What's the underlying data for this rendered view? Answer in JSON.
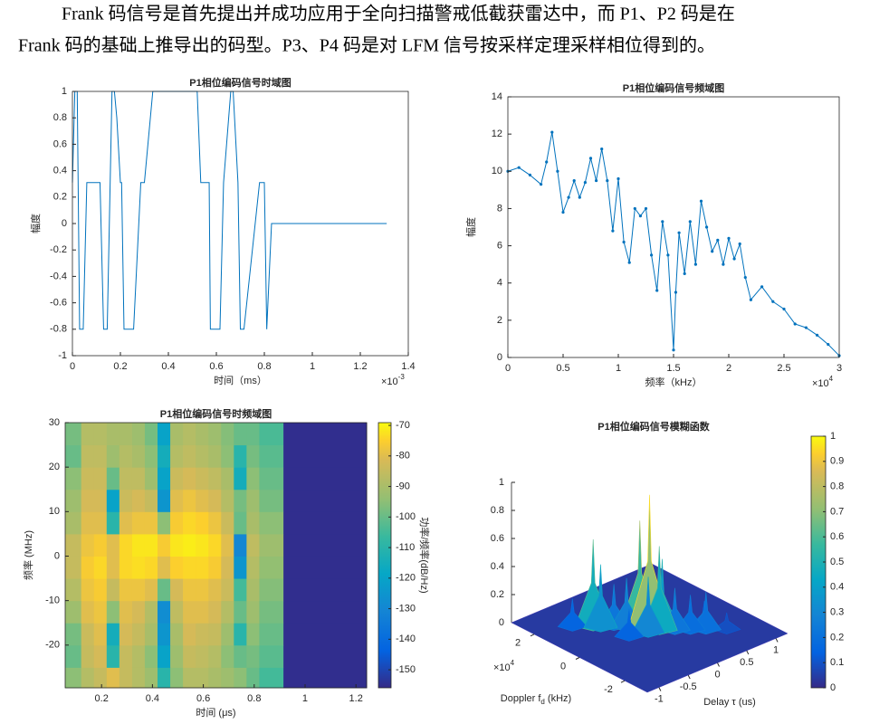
{
  "paragraph": [
    "Frank 码信号是首先提出并成功应用于全向扫描警戒低截获雷达中，而 P1、P2 码是在",
    "Frank 码的基础上推导出的码型。P3、P4 码是对 LFM 信号按采样定理采样相位得到的。"
  ],
  "chart_data": [
    {
      "type": "line",
      "title": "P1相位编码信号时域图",
      "xlabel": "时间（ms）",
      "ylabel": "幅度",
      "x_scale": "×10",
      "x_scale_exp": "-3",
      "x": [
        0,
        0.01,
        0.02,
        0.03,
        0.045,
        0.06,
        0.07,
        0.115,
        0.13,
        0.145,
        0.165,
        0.175,
        0.185,
        0.2,
        0.205,
        0.215,
        0.235,
        0.255,
        0.285,
        0.3,
        0.335,
        0.52,
        0.535,
        0.56,
        0.57,
        0.575,
        0.615,
        0.63,
        0.66,
        0.67,
        0.69,
        0.7,
        0.715,
        0.78,
        0.79,
        0.8,
        0.81,
        0.83,
        1.31
      ],
      "values": [
        0.31,
        1,
        1,
        -0.8,
        -0.8,
        0.31,
        0.31,
        0.31,
        -0.8,
        -0.8,
        1,
        1,
        0.8,
        0.31,
        0.31,
        -0.8,
        -0.8,
        -0.8,
        0.31,
        0.31,
        1,
        1,
        0.31,
        0.31,
        0.31,
        -0.8,
        -0.8,
        0.31,
        1,
        1,
        0.31,
        -0.8,
        -0.8,
        0.31,
        0.31,
        0.31,
        -0.8,
        0,
        0
      ],
      "color": "#0072bd",
      "xlim": [
        0,
        1.4
      ],
      "ylim": [
        -1,
        1
      ],
      "xticks": [
        0,
        0.2,
        0.4,
        0.6,
        0.8,
        1,
        1.2,
        1.4
      ],
      "yticks": [
        -1,
        -0.8,
        -0.6,
        -0.4,
        -0.2,
        0,
        0.2,
        0.4,
        0.6,
        0.8,
        1
      ]
    },
    {
      "type": "line",
      "markers": true,
      "title": "P1相位编码信号频域图",
      "xlabel": "频率（kHz）",
      "ylabel": "幅度",
      "x_scale": "×10",
      "x_scale_exp": "4",
      "x": [
        0,
        0.1,
        0.2,
        0.3,
        0.35,
        0.4,
        0.45,
        0.5,
        0.55,
        0.6,
        0.65,
        0.7,
        0.75,
        0.8,
        0.85,
        0.9,
        0.95,
        1.0,
        1.05,
        1.1,
        1.15,
        1.2,
        1.25,
        1.3,
        1.35,
        1.4,
        1.45,
        1.5,
        1.52,
        1.55,
        1.6,
        1.65,
        1.7,
        1.75,
        1.8,
        1.85,
        1.9,
        1.95,
        2.0,
        2.05,
        2.1,
        2.15,
        2.2,
        2.3,
        2.4,
        2.5,
        2.6,
        2.7,
        2.8,
        2.9,
        3.0
      ],
      "values": [
        10,
        10.2,
        9.8,
        9.3,
        10.5,
        12.1,
        10,
        7.8,
        8.6,
        9.5,
        8.6,
        9.4,
        10.7,
        9.5,
        11.2,
        9.5,
        6.8,
        9.6,
        6.2,
        5.1,
        8,
        7.6,
        8,
        5.5,
        3.6,
        7.3,
        5.5,
        0.4,
        3.5,
        6.7,
        4.5,
        7.3,
        5.0,
        8.4,
        7.0,
        5.7,
        6.3,
        5.0,
        6.4,
        5.3,
        6.1,
        4.3,
        3.1,
        3.8,
        3.0,
        2.6,
        1.8,
        1.6,
        1.2,
        0.7,
        0.1
      ],
      "color": "#0072bd",
      "xlim": [
        0,
        3
      ],
      "ylim": [
        0,
        14
      ],
      "xticks": [
        0,
        0.5,
        1,
        1.5,
        2,
        2.5,
        3
      ],
      "yticks": [
        0,
        2,
        4,
        6,
        8,
        10,
        12,
        14
      ]
    },
    {
      "type": "heatmap",
      "title": "P1相位编码信号时频域图",
      "xlabel": "时间 (μs)",
      "ylabel": "频率 (MHz)",
      "colorbar_label": "功率/频率(dB/Hz)",
      "colormap": "parula",
      "x_edges": [
        0.057,
        0.12,
        0.17,
        0.22,
        0.27,
        0.32,
        0.37,
        0.42,
        0.47,
        0.52,
        0.57,
        0.62,
        0.67,
        0.72,
        0.77,
        0.82,
        0.915,
        1.242
      ],
      "y_edges": [
        -29.6,
        -25,
        -20,
        -15,
        -10,
        -5,
        0,
        5,
        10,
        15,
        20,
        25,
        30
      ],
      "values": [
        [
          -95,
          -88,
          -85,
          -80,
          -85,
          -88,
          -92,
          -110,
          -95,
          -88,
          -88,
          -90,
          -92,
          -95,
          -100,
          -105,
          -155
        ],
        [
          -100,
          -85,
          -82,
          -110,
          -85,
          -88,
          -95,
          -120,
          -92,
          -85,
          -86,
          -88,
          -95,
          -100,
          -98,
          -102,
          -155
        ],
        [
          -98,
          -84,
          -80,
          -115,
          -82,
          -85,
          -90,
          -125,
          -90,
          -82,
          -84,
          -85,
          -92,
          -110,
          -95,
          -100,
          -155
        ],
        [
          -92,
          -80,
          -78,
          -95,
          -80,
          -82,
          -88,
          -128,
          -86,
          -80,
          -80,
          -82,
          -88,
          -100,
          -92,
          -98,
          -155
        ],
        [
          -88,
          -78,
          -76,
          -85,
          -78,
          -78,
          -80,
          -100,
          -82,
          -78,
          -78,
          -80,
          -84,
          -105,
          -90,
          -96,
          -155
        ],
        [
          -85,
          -76,
          -74,
          -80,
          -74,
          -73,
          -74,
          -80,
          -75,
          -74,
          -74,
          -76,
          -82,
          -125,
          -88,
          -94,
          -155
        ],
        [
          -85,
          -78,
          -76,
          -80,
          -74,
          -72,
          -72,
          -76,
          -72,
          -71,
          -72,
          -74,
          -80,
          -130,
          -86,
          -92,
          -155
        ],
        [
          -90,
          -80,
          -80,
          -110,
          -80,
          -78,
          -78,
          -95,
          -76,
          -74,
          -75,
          -78,
          -84,
          -100,
          -90,
          -95,
          -155
        ],
        [
          -92,
          -82,
          -82,
          -120,
          -84,
          -82,
          -85,
          -125,
          -80,
          -78,
          -80,
          -82,
          -88,
          -98,
          -92,
          -98,
          -155
        ],
        [
          -95,
          -84,
          -84,
          -100,
          -86,
          -86,
          -92,
          -120,
          -84,
          -82,
          -84,
          -86,
          -90,
          -115,
          -95,
          -100,
          -155
        ],
        [
          -100,
          -86,
          -86,
          -92,
          -88,
          -90,
          -95,
          -115,
          -88,
          -86,
          -88,
          -90,
          -95,
          -110,
          -98,
          -102,
          -155
        ],
        [
          -98,
          -88,
          -88,
          -90,
          -90,
          -92,
          -98,
          -120,
          -90,
          -88,
          -90,
          -92,
          -96,
          -100,
          -100,
          -104,
          -155
        ]
      ],
      "xlim": [
        0.057,
        1.242
      ],
      "ylim": [
        -29.6,
        30
      ],
      "xticks": [
        0.2,
        0.4,
        0.6,
        0.8,
        1,
        1.2
      ],
      "yticks": [
        -20,
        -10,
        0,
        10,
        20,
        30
      ],
      "clim": [
        -155.9,
        -69.1
      ],
      "cticks": [
        -70,
        -80,
        -90,
        -100,
        -110,
        -120,
        -130,
        -140,
        -150
      ]
    },
    {
      "type": "surface3d",
      "title": "P1相位编码信号模糊函数",
      "xlabel": "Delay τ (us)",
      "ylabel": [
        "Doppler f",
        "d",
        " (kHz)"
      ],
      "y_scale": "×10",
      "y_scale_exp": "4",
      "colormap": "parula",
      "delay": [
        0,
        -0.05,
        0.05,
        -0.5,
        -0.45,
        -0.3,
        -0.2,
        0.1,
        0.2,
        0.35,
        0.5,
        0.55,
        -0.7,
        0.3,
        -0.1,
        0.7,
        0.15,
        -0.35
      ],
      "doppler": [
        0,
        0.3,
        -0.3,
        1.2,
        1.0,
        0.8,
        0.5,
        -0.3,
        -0.6,
        -0.9,
        -1.2,
        -1.0,
        1.6,
        0.2,
        -0.2,
        -1.6,
        0.6,
        0.0
      ],
      "values": [
        0.95,
        0.75,
        0.6,
        0.62,
        0.45,
        0.3,
        0.35,
        0.5,
        0.3,
        0.25,
        0.27,
        0.18,
        0.2,
        0.25,
        0.4,
        0.12,
        0.22,
        0.2
      ],
      "xlim": [
        -1.2,
        1.2
      ],
      "ylim": [
        -3,
        3
      ],
      "zlim": [
        0,
        1
      ],
      "xticks": [
        -1,
        -0.5,
        0,
        0.5,
        1
      ],
      "yticks": [
        -2,
        0,
        2
      ],
      "zticks": [
        0,
        0.2,
        0.4,
        0.6,
        0.8,
        1
      ],
      "clim": [
        0,
        1
      ],
      "cticks": [
        0,
        0.1,
        0.2,
        0.3,
        0.4,
        0.5,
        0.6,
        0.7,
        0.8,
        0.9,
        1
      ]
    }
  ]
}
